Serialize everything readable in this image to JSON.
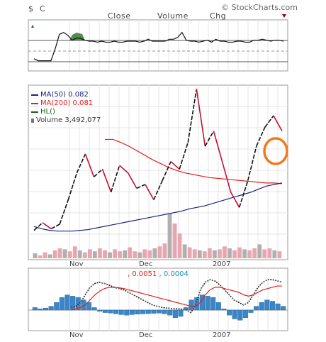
{
  "header": {
    "symbol": "$",
    "symbol2": "C",
    "close_label": "Close",
    "volume_label": "Volume",
    "chg_label": "Chg",
    "brand": "© StockCharts.com"
  },
  "colors": {
    "ma50": "#1a237e",
    "ma200": "#e0201c",
    "hl": "#1b5e20",
    "price_up": "#111111",
    "price_down": "#c8102e",
    "volume_up": "#b0b0b0",
    "volume_down": "#e8a6b0",
    "macd_hist": "#3a86c8",
    "macd_signal": "#e0201c",
    "annotation": "#f07a1a"
  },
  "chart_data": [
    {
      "type": "line",
      "panel": "rsi-indicator",
      "series": [
        {
          "values": [
            51,
            49,
            49,
            49,
            49,
            61,
            76,
            78,
            75,
            70,
            72,
            72,
            70,
            69,
            69,
            68,
            69,
            68,
            68,
            69,
            68,
            68,
            69,
            69,
            69,
            68,
            69,
            71,
            69,
            69,
            69,
            69,
            71,
            71,
            73,
            78,
            70,
            69,
            69,
            68,
            69,
            70,
            68,
            71,
            69,
            69,
            68,
            68,
            69,
            69,
            68,
            68,
            70,
            70,
            71,
            70,
            69,
            70,
            70,
            69
          ]
        }
      ]
    },
    {
      "type": "line",
      "panel": "price",
      "legend": [
        {
          "label": "MA(50) 0.082",
          "color": "#1a237e"
        },
        {
          "label": "MA(200) 0.081",
          "color": "#e0201c"
        },
        {
          "label": "HL()",
          "color": "#1b5e20"
        },
        {
          "label": "Volume 3,492,077",
          "color": "#777777"
        }
      ],
      "series": [
        {
          "name": "MA(50)",
          "values": [
            0.025,
            0.022,
            0.02,
            0.019,
            0.019,
            0.019,
            0.02,
            0.021,
            0.023,
            0.025,
            0.027,
            0.029,
            0.031,
            0.033,
            0.035,
            0.037,
            0.039,
            0.041,
            0.043,
            0.045,
            0.048,
            0.05,
            0.052,
            0.055,
            0.058,
            0.061,
            0.064,
            0.067,
            0.07,
            0.074,
            0.078,
            0.08,
            0.082
          ]
        },
        {
          "name": "MA(200)",
          "values": [
            0.139,
            0.139,
            0.135,
            0.13,
            0.124,
            0.118,
            0.112,
            0.107,
            0.102,
            0.098,
            0.095,
            0.093,
            0.091,
            0.089,
            0.088,
            0.087,
            0.086,
            0.085,
            0.084,
            0.083,
            0.082,
            0.082,
            0.081
          ]
        },
        {
          "name": "price",
          "values": [
            0.02,
            0.03,
            0.022,
            0.028,
            0.06,
            0.095,
            0.12,
            0.09,
            0.1,
            0.07,
            0.105,
            0.095,
            0.075,
            0.08,
            0.06,
            0.085,
            0.11,
            0.1,
            0.135,
            0.205,
            0.13,
            0.15,
            0.11,
            0.07,
            0.05,
            0.085,
            0.13,
            0.155,
            0.17,
            0.15
          ]
        }
      ],
      "volume": [
        5,
        3,
        6,
        4,
        8,
        10,
        9,
        7,
        12,
        8,
        6,
        9,
        7,
        10,
        8,
        6,
        9,
        7,
        8,
        11,
        7,
        6,
        9,
        8,
        10,
        12,
        15,
        45,
        35,
        25,
        14,
        11,
        9,
        8,
        7,
        10,
        8,
        9,
        12,
        10,
        8,
        11,
        9,
        8,
        10,
        14,
        9,
        10,
        8,
        7
      ]
    },
    {
      "type": "bar",
      "panel": "macd",
      "labels": [
        ", 0.0051",
        ", 0.0004"
      ],
      "histogram": [
        0.001,
        0.0005,
        0.0008,
        0.0015,
        0.003,
        0.005,
        0.006,
        0.0055,
        0.005,
        0.004,
        0.003,
        0.001,
        -0.0005,
        -0.001,
        -0.0012,
        -0.0015,
        -0.0018,
        -0.002,
        -0.0018,
        -0.0016,
        -0.0015,
        -0.0014,
        -0.0013,
        -0.0012,
        -0.0015,
        -0.002,
        -0.003,
        -0.0025,
        0.001,
        0.004,
        0.005,
        0.006,
        0.0055,
        0.005,
        0.003,
        0.0005,
        -0.002,
        -0.0035,
        -0.004,
        -0.003,
        -0.001,
        0.0015,
        0.003,
        0.004,
        0.0035,
        0.0025,
        0.0015
      ],
      "macd_line": [
        0.001,
        0.0015,
        0.003,
        0.006,
        0.009,
        0.0105,
        0.011,
        0.0105,
        0.0098,
        0.009,
        0.0085,
        0.008,
        0.007,
        0.006,
        0.005,
        0.004,
        0.003,
        0.002,
        0.0015,
        0.001,
        0.0008,
        0.0006,
        0.0005,
        0.0004,
        0.0,
        -0.001,
        0.002,
        0.008,
        0.011,
        0.012,
        0.0115,
        0.01,
        0.008,
        0.006,
        0.004,
        0.003,
        0.002,
        0.003,
        0.006,
        0.009,
        0.011,
        0.012,
        0.012,
        0.0115,
        0.011
      ],
      "signal_line": [
        0.0,
        0.0005,
        0.001,
        0.002,
        0.004,
        0.006,
        0.0075,
        0.0085,
        0.009,
        0.009,
        0.0088,
        0.0085,
        0.008,
        0.0075,
        0.007,
        0.0065,
        0.006,
        0.0055,
        0.005,
        0.0045,
        0.004,
        0.0035,
        0.003,
        0.0025,
        0.002,
        0.0015,
        0.0015,
        0.003,
        0.006,
        0.008,
        0.009,
        0.009,
        0.0085,
        0.008,
        0.0075,
        0.007,
        0.006,
        0.0055,
        0.006,
        0.007,
        0.008,
        0.0085,
        0.009,
        0.0095,
        0.0095
      ]
    }
  ],
  "x_ticks": [
    "Nov",
    "Dec",
    "2007"
  ],
  "macd_x_ticks": [
    "Nov",
    "Dec",
    "2007"
  ]
}
